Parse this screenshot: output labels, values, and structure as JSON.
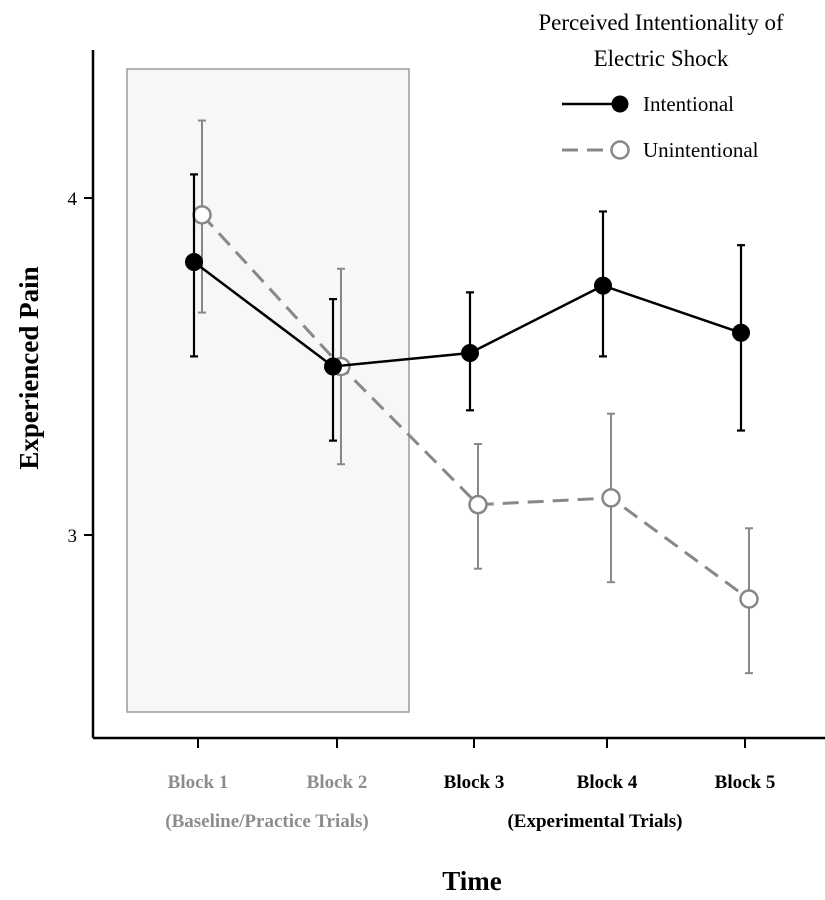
{
  "chart_data": {
    "type": "line",
    "legend_title_lines": [
      "Perceived Intentionality of",
      "Electric Shock"
    ],
    "legend_position": "top-right",
    "xlabel": "Time",
    "ylabel": "Experienced Pain",
    "y_ticks": [
      3,
      4
    ],
    "y_tick_labels": [
      "3",
      "4"
    ],
    "ylim": [
      2.5,
      4.44
    ],
    "categories": [
      "Block 1",
      "Block 2",
      "Block 3",
      "Block 4",
      "Block 5"
    ],
    "group_labels": [
      "(Baseline/Practice Trials)",
      "(Experimental Trials)"
    ],
    "shaded_region": {
      "from": "Block 1",
      "to": "Block 2",
      "meaning": "baseline/practice trials"
    },
    "grid": false,
    "series": [
      {
        "name": "Intentional",
        "values": [
          3.81,
          3.5,
          3.54,
          3.74,
          3.6
        ],
        "error_low": [
          3.53,
          3.28,
          3.37,
          3.53,
          3.31
        ],
        "error_high": [
          4.07,
          3.7,
          3.72,
          3.96,
          3.86
        ],
        "color": "#000000",
        "marker": "filled-circle",
        "line_style": "solid"
      },
      {
        "name": "Unintentional",
        "values": [
          3.95,
          3.5,
          3.09,
          3.11,
          2.81
        ],
        "error_low": [
          3.66,
          3.21,
          2.9,
          2.86,
          2.59
        ],
        "error_high": [
          4.23,
          3.79,
          3.27,
          3.36,
          3.02
        ],
        "color": "#888888",
        "marker": "open-circle",
        "line_style": "dashed"
      }
    ]
  },
  "colors": {
    "experimental_label": "#000000",
    "baseline_label": "#8c8c8c",
    "shaded_fill": "#f7f7f7",
    "shaded_stroke": "#9a9a9a"
  }
}
